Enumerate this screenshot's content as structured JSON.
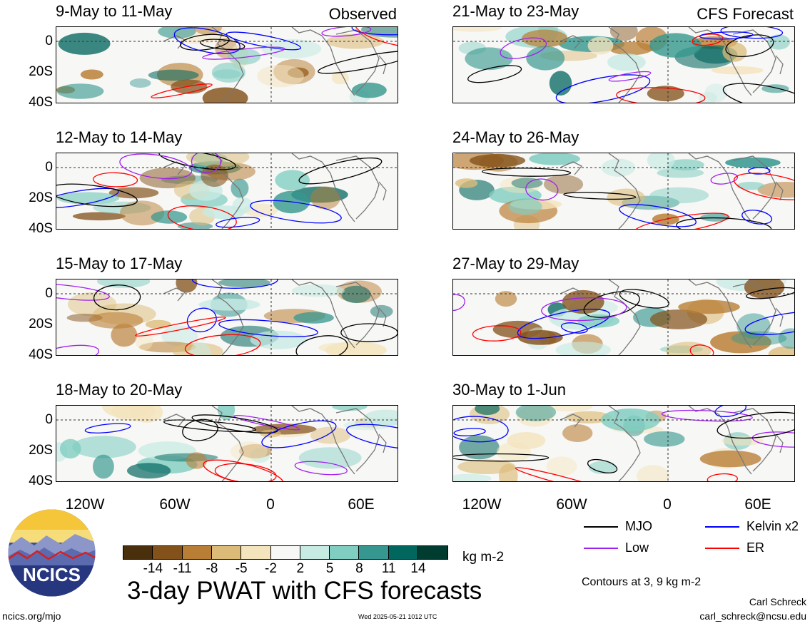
{
  "panels": [
    {
      "title": "9-May to 11-May",
      "tag": "Observed",
      "col": 0,
      "row": 0
    },
    {
      "title": "12-May to 14-May",
      "tag": "",
      "col": 0,
      "row": 1
    },
    {
      "title": "15-May to 17-May",
      "tag": "",
      "col": 0,
      "row": 2
    },
    {
      "title": "18-May to 20-May",
      "tag": "",
      "col": 0,
      "row": 3
    },
    {
      "title": "21-May to 23-May",
      "tag": "CFS Forecast",
      "col": 1,
      "row": 0
    },
    {
      "title": "24-May to 26-May",
      "tag": "",
      "col": 1,
      "row": 1
    },
    {
      "title": "27-May to 29-May",
      "tag": "",
      "col": 1,
      "row": 2
    },
    {
      "title": "30-May to 1-Jun",
      "tag": "",
      "col": 1,
      "row": 3
    }
  ],
  "y_ticks": [
    "0",
    "20S",
    "40S"
  ],
  "x_ticks": [
    "120W",
    "60W",
    "0",
    "60E"
  ],
  "colorbar": {
    "colors": [
      "#4a2f0c",
      "#83511a",
      "#b97e35",
      "#dcbb78",
      "#f4e4bd",
      "#f7f7f5",
      "#c7eae3",
      "#80cdc1",
      "#35978f",
      "#01665e",
      "#003c30"
    ],
    "labels": [
      "-14",
      "-11",
      "-8",
      "-5",
      "-2",
      "2",
      "5",
      "8",
      "11",
      "14"
    ],
    "units": "kg m-2"
  },
  "contour_key": [
    {
      "label": "MJO",
      "color": "#000000"
    },
    {
      "label": "Kelvin x2",
      "color": "#0000ff"
    },
    {
      "label": "Low",
      "color": "#a020f0"
    },
    {
      "label": "ER",
      "color": "#ff0000"
    }
  ],
  "contours_note": "Contours at 3, 9 kg m-2",
  "main_title": "3-day PWAT with CFS forecasts",
  "logo_text": "NCICS",
  "site": "ncics.org/mjo",
  "timestamp": "Wed 2025-05-21 1012 UTC",
  "author": "Carl Schreck",
  "email": "carl_schreck@ncsu.edu"
}
